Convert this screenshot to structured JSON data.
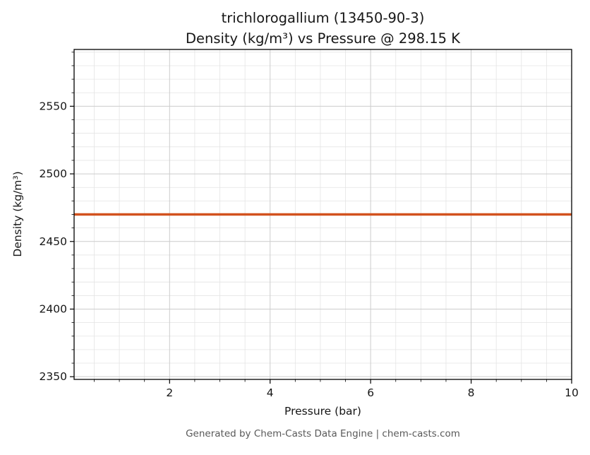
{
  "figure": {
    "title": "trichlorogallium (13450-90-3)",
    "subtitle": "Density (kg/m³) vs Pressure @ 298.15 K",
    "xlabel": "Pressure (bar)",
    "ylabel": "Density (kg/m³)",
    "footer": "Generated by Chem-Casts Data Engine | chem-casts.com"
  },
  "chart_data": {
    "type": "line",
    "title": "trichlorogallium (13450-90-3)",
    "subtitle": "Density (kg/m³) vs Pressure @ 298.15 K",
    "xlabel": "Pressure (bar)",
    "ylabel": "Density (kg/m³)",
    "x": [
      0.1,
      10
    ],
    "series": [
      {
        "name": "Density",
        "values": [
          2470,
          2470
        ],
        "color": "#d2521e",
        "linewidth": 3.5
      }
    ],
    "xlim": [
      0.1,
      10
    ],
    "ylim": [
      2348,
      2592
    ],
    "x_ticks": [
      2,
      4,
      6,
      8,
      10
    ],
    "y_ticks": [
      2350,
      2400,
      2450,
      2500,
      2550
    ],
    "x_minor_step": 0.5,
    "y_minor_step": 10,
    "grid": {
      "major_color": "#cccccc",
      "minor_color": "#e4e4e4",
      "on": true
    },
    "legend": "none",
    "footer": "Generated by Chem-Casts Data Engine | chem-casts.com",
    "colors": {
      "spine": "#000000",
      "text": "#161616",
      "footer_text": "#595959"
    }
  }
}
